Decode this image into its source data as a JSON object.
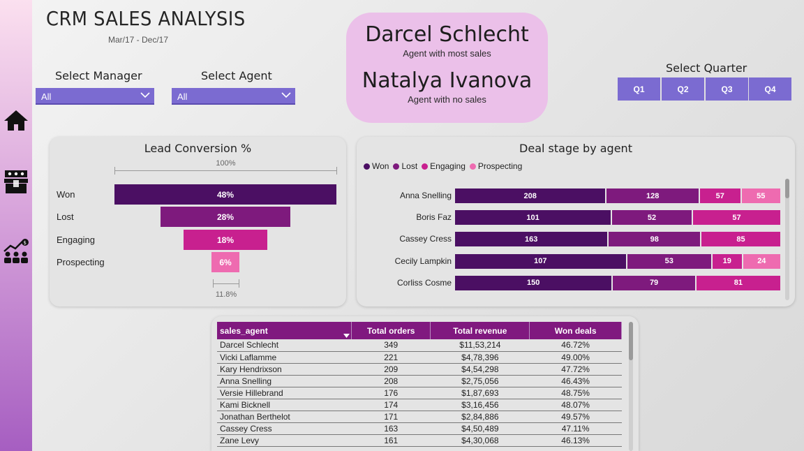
{
  "header": {
    "title": "CRM SALES ANALYSIS",
    "date_range": "Mar/17 - Dec/17"
  },
  "sidebar": {
    "items": [
      {
        "icon": "home-icon"
      },
      {
        "icon": "products-icon"
      },
      {
        "icon": "sales-team-icon"
      }
    ]
  },
  "filters": {
    "manager_label": "Select Manager",
    "manager_value": "All",
    "agent_label": "Select Agent",
    "agent_value": "All"
  },
  "kpi": {
    "top_agent_name": "Darcel Schlecht",
    "top_agent_caption": "Agent with most sales",
    "no_sales_agent_name": "Natalya Ivanova",
    "no_sales_agent_caption": "Agent with no sales"
  },
  "quarters": {
    "label": "Select Quarter",
    "options": [
      "Q1",
      "Q2",
      "Q3",
      "Q4"
    ]
  },
  "colors": {
    "accent_slicer": "#7b6bd1",
    "won": "#4b0f63",
    "lost": "#7e1a7d",
    "engaging": "#c8208f",
    "prospecting": "#ee6bb0",
    "table_header": "#80197f"
  },
  "chart_data": [
    {
      "type": "bar",
      "title": "Lead Conversion %",
      "categories": [
        "Won",
        "Lost",
        "Engaging",
        "Prospecting"
      ],
      "values": [
        48,
        28,
        18,
        6
      ],
      "value_labels": [
        "48%",
        "28%",
        "18%",
        "6%"
      ],
      "top_scale_label": "100%",
      "bottom_scale_label": "11.8%"
    },
    {
      "type": "bar",
      "title": "Deal stage by agent",
      "legend": [
        "Won",
        "Lost",
        "Engaging",
        "Prospecting"
      ],
      "legend_position": "top-left",
      "categories": [
        "Anna Snelling",
        "Boris Faz",
        "Cassey Cress",
        "Cecily Lampkin",
        "Corliss Cosme"
      ],
      "series": [
        {
          "name": "Won",
          "values": [
            208,
            101,
            163,
            107,
            150
          ]
        },
        {
          "name": "Lost",
          "values": [
            128,
            52,
            98,
            53,
            79
          ]
        },
        {
          "name": "Engaging",
          "values": [
            57,
            57,
            85,
            19,
            81
          ]
        },
        {
          "name": "Prospecting",
          "values": [
            55,
            0,
            0,
            24,
            0
          ]
        }
      ]
    }
  ],
  "table": {
    "columns": [
      "sales_agent",
      "Total orders",
      "Total revenue",
      "Won deals"
    ],
    "rows": [
      [
        "Darcel Schlecht",
        "349",
        "$11,53,214",
        "46.72%"
      ],
      [
        "Vicki Laflamme",
        "221",
        "$4,78,396",
        "49.00%"
      ],
      [
        "Kary Hendrixson",
        "209",
        "$4,54,298",
        "47.72%"
      ],
      [
        "Anna Snelling",
        "208",
        "$2,75,056",
        "46.43%"
      ],
      [
        "Versie Hillebrand",
        "176",
        "$1,87,693",
        "48.75%"
      ],
      [
        "Kami Bicknell",
        "174",
        "$3,16,456",
        "48.07%"
      ],
      [
        "Jonathan Berthelot",
        "171",
        "$2,84,886",
        "49.57%"
      ],
      [
        "Cassey Cress",
        "163",
        "$4,50,489",
        "47.11%"
      ],
      [
        "Zane Levy",
        "161",
        "$4,30,068",
        "46.13%"
      ]
    ]
  }
}
